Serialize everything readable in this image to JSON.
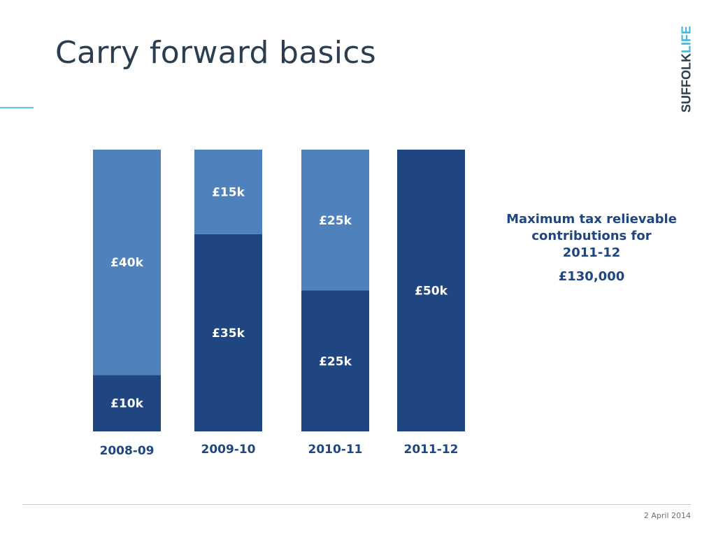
{
  "slide": {
    "title": "Carry forward basics",
    "logo": {
      "part1": "SUFFOLK",
      "part2": "LIFE"
    },
    "footer_date": "2 April 2014"
  },
  "callout": {
    "lines": [
      "Maximum tax relievable",
      "contributions for",
      "2011-12"
    ],
    "amount": "£130,000"
  },
  "colors": {
    "dark": "#1f4680",
    "light": "#4f81bd",
    "text_dark": "#2a3e50",
    "accent": "#5bc8dc"
  },
  "chart_data": {
    "type": "bar",
    "stacked": true,
    "categories": [
      "2008-09",
      "2009-10",
      "2010-11",
      "2011-12"
    ],
    "series": [
      {
        "values": [
          10,
          35,
          25,
          50
        ],
        "labels": [
          "£10k",
          "£35k",
          "£25k",
          "£50k"
        ],
        "color": "#1f4680"
      },
      {
        "values": [
          40,
          15,
          25,
          0
        ],
        "labels": [
          "£40k",
          "£15k",
          "£25k",
          ""
        ],
        "color": "#4f81bd"
      }
    ],
    "unit": "£k",
    "ylim": [
      0,
      50
    ],
    "grid": false,
    "legend": "none",
    "xlabel": "",
    "ylabel": ""
  }
}
